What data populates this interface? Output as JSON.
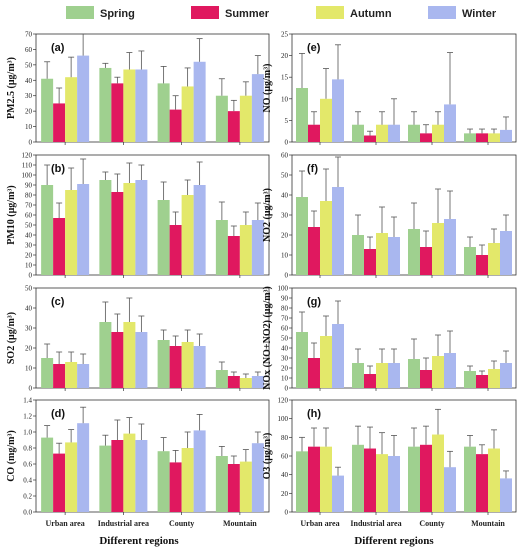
{
  "legend": [
    {
      "name": "Spring",
      "color": "#9fd08f"
    },
    {
      "name": "Summer",
      "color": "#e0185f"
    },
    {
      "name": "Autumn",
      "color": "#e3e86a"
    },
    {
      "name": "Winter",
      "color": "#a9b7ef"
    }
  ],
  "x_axis_label": "Different regions",
  "chart_data": [
    {
      "type": "bar",
      "panel": "(a)",
      "ylabel": "PM2.5 (μg/m³)",
      "ylim": [
        0,
        70
      ],
      "yticks": [
        0,
        10,
        20,
        30,
        40,
        50,
        60,
        70
      ],
      "categories": [
        "Urban area",
        "Industrial area",
        "County",
        "Mountain"
      ],
      "show_xticks": false,
      "series": [
        {
          "name": "Spring",
          "values": [
            41,
            48,
            38,
            30
          ],
          "errors": [
            11,
            3,
            11,
            11
          ]
        },
        {
          "name": "Summer",
          "values": [
            25,
            38,
            21,
            20
          ],
          "errors": [
            10,
            4,
            9,
            7
          ]
        },
        {
          "name": "Autumn",
          "values": [
            42,
            47,
            36,
            30
          ],
          "errors": [
            13,
            11,
            12,
            9
          ]
        },
        {
          "name": "Winter",
          "values": [
            56,
            47,
            52,
            44
          ],
          "errors": [
            15,
            12,
            15,
            12
          ]
        }
      ]
    },
    {
      "type": "bar",
      "panel": "(b)",
      "ylabel": "PM10 (μg/m³)",
      "ylim": [
        0,
        120
      ],
      "yticks": [
        0,
        10,
        20,
        30,
        40,
        50,
        60,
        70,
        80,
        90,
        100,
        110,
        120
      ],
      "categories": [
        "Urban area",
        "Industrial area",
        "County",
        "Mountain"
      ],
      "show_xticks": false,
      "series": [
        {
          "name": "Spring",
          "values": [
            90,
            95,
            75,
            55
          ],
          "errors": [
            20,
            8,
            18,
            18
          ]
        },
        {
          "name": "Summer",
          "values": [
            57,
            83,
            50,
            39
          ],
          "errors": [
            15,
            18,
            13,
            10
          ]
        },
        {
          "name": "Autumn",
          "values": [
            85,
            92,
            80,
            50
          ],
          "errors": [
            22,
            20,
            15,
            13
          ]
        },
        {
          "name": "Winter",
          "values": [
            91,
            95,
            90,
            55
          ],
          "errors": [
            25,
            15,
            23,
            17
          ]
        }
      ]
    },
    {
      "type": "bar",
      "panel": "(c)",
      "ylabel": "SO2 (μg/m³)",
      "ylim": [
        0,
        50
      ],
      "yticks": [
        0,
        10,
        20,
        30,
        40,
        50
      ],
      "categories": [
        "Urban area",
        "Industrial area",
        "County",
        "Mountain"
      ],
      "show_xticks": false,
      "series": [
        {
          "name": "Spring",
          "values": [
            15,
            33,
            24,
            9
          ],
          "errors": [
            7,
            10,
            5,
            4
          ]
        },
        {
          "name": "Summer",
          "values": [
            12,
            28,
            21,
            6
          ],
          "errors": [
            6,
            9,
            5,
            2
          ]
        },
        {
          "name": "Autumn",
          "values": [
            13,
            33,
            23,
            5
          ],
          "errors": [
            5,
            12,
            6,
            2
          ]
        },
        {
          "name": "Winter",
          "values": [
            12,
            28,
            21,
            6
          ],
          "errors": [
            5,
            8,
            6,
            2
          ]
        }
      ]
    },
    {
      "type": "bar",
      "panel": "(d)",
      "ylabel": "CO (mg/m³)",
      "ylim": [
        0,
        1.4
      ],
      "yticks": [
        0.0,
        0.2,
        0.4,
        0.6,
        0.8,
        1.0,
        1.2,
        1.4
      ],
      "categories": [
        "Urban area",
        "Industrial area",
        "County",
        "Mountain"
      ],
      "show_xticks": true,
      "series": [
        {
          "name": "Spring",
          "values": [
            0.93,
            0.83,
            0.76,
            0.7
          ],
          "errors": [
            0.15,
            0.13,
            0.17,
            0.12
          ]
        },
        {
          "name": "Summer",
          "values": [
            0.73,
            0.9,
            0.62,
            0.6
          ],
          "errors": [
            0.13,
            0.25,
            0.15,
            0.1
          ]
        },
        {
          "name": "Autumn",
          "values": [
            0.87,
            0.98,
            0.8,
            0.63
          ],
          "errors": [
            0.16,
            0.2,
            0.2,
            0.15
          ]
        },
        {
          "name": "Winter",
          "values": [
            1.11,
            0.9,
            1.02,
            0.86
          ],
          "errors": [
            0.2,
            0.2,
            0.2,
            0.14
          ]
        }
      ]
    },
    {
      "type": "bar",
      "panel": "(e)",
      "ylabel": "NO (μg/m³)",
      "ylim": [
        0,
        25
      ],
      "yticks": [
        0,
        5,
        10,
        15,
        20,
        25
      ],
      "categories": [
        "Urban area",
        "Industrial area",
        "County",
        "Mountain"
      ],
      "show_xticks": false,
      "series": [
        {
          "name": "Spring",
          "values": [
            12.5,
            4,
            4,
            2
          ],
          "errors": [
            8,
            3,
            3,
            1
          ]
        },
        {
          "name": "Summer",
          "values": [
            4,
            1.5,
            2,
            2
          ],
          "errors": [
            3,
            1,
            2,
            1
          ]
        },
        {
          "name": "Autumn",
          "values": [
            10,
            4,
            4,
            2
          ],
          "errors": [
            7,
            3,
            3,
            1
          ]
        },
        {
          "name": "Winter",
          "values": [
            14.5,
            4,
            8.7,
            2.8
          ],
          "errors": [
            8,
            6,
            12,
            3
          ]
        }
      ]
    },
    {
      "type": "bar",
      "panel": "(f)",
      "ylabel": "NO2 (μg/m³)",
      "ylim": [
        0,
        60
      ],
      "yticks": [
        0,
        10,
        20,
        30,
        40,
        50,
        60
      ],
      "categories": [
        "Urban area",
        "Industrial area",
        "County",
        "Mountain"
      ],
      "show_xticks": false,
      "series": [
        {
          "name": "Spring",
          "values": [
            39,
            20,
            23,
            14
          ],
          "errors": [
            13,
            10,
            13,
            5
          ]
        },
        {
          "name": "Summer",
          "values": [
            24,
            13,
            14,
            10
          ],
          "errors": [
            8,
            6,
            8,
            5
          ]
        },
        {
          "name": "Autumn",
          "values": [
            37,
            21,
            26,
            16
          ],
          "errors": [
            16,
            13,
            17,
            7
          ]
        },
        {
          "name": "Winter",
          "values": [
            44,
            19,
            28,
            22
          ],
          "errors": [
            15,
            10,
            14,
            8
          ]
        }
      ]
    },
    {
      "type": "bar",
      "panel": "(g)",
      "ylabel": "NOx (NO+NO2) (μg/m³)",
      "ylim": [
        0,
        100
      ],
      "yticks": [
        0,
        10,
        20,
        30,
        40,
        50,
        60,
        70,
        80,
        90,
        100
      ],
      "categories": [
        "Urban area",
        "Industrial area",
        "County",
        "Mountain"
      ],
      "show_xticks": false,
      "series": [
        {
          "name": "Spring",
          "values": [
            56,
            25,
            29,
            17
          ],
          "errors": [
            20,
            14,
            20,
            5
          ]
        },
        {
          "name": "Summer",
          "values": [
            30,
            14,
            18,
            13
          ],
          "errors": [
            15,
            8,
            12,
            4
          ]
        },
        {
          "name": "Autumn",
          "values": [
            52,
            25,
            32,
            19
          ],
          "errors": [
            20,
            14,
            21,
            8
          ]
        },
        {
          "name": "Winter",
          "values": [
            64,
            25,
            35,
            25
          ],
          "errors": [
            23,
            14,
            22,
            12
          ]
        }
      ]
    },
    {
      "type": "bar",
      "panel": "(h)",
      "ylabel": "O3 (μg/m³)",
      "ylim": [
        0,
        120
      ],
      "yticks": [
        0,
        20,
        40,
        60,
        80,
        100,
        120
      ],
      "categories": [
        "Urban area",
        "Industrial area",
        "County",
        "Mountain"
      ],
      "show_xticks": true,
      "series": [
        {
          "name": "Spring",
          "values": [
            65,
            72,
            70,
            70
          ],
          "errors": [
            15,
            20,
            20,
            12
          ]
        },
        {
          "name": "Summer",
          "values": [
            70,
            68,
            72,
            62
          ],
          "errors": [
            20,
            23,
            20,
            10
          ]
        },
        {
          "name": "Autumn",
          "values": [
            70,
            62,
            83,
            68
          ],
          "errors": [
            20,
            23,
            27,
            20
          ]
        },
        {
          "name": "Winter",
          "values": [
            39,
            60,
            48,
            36
          ],
          "errors": [
            9,
            22,
            17,
            8
          ]
        }
      ]
    }
  ]
}
